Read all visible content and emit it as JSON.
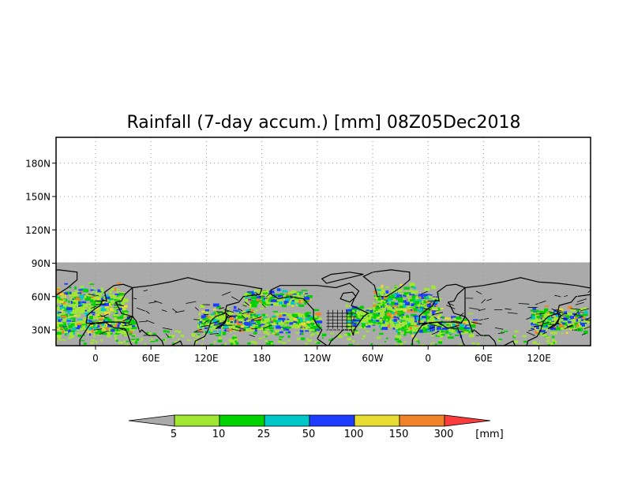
{
  "title": "Rainfall (7-day accum.) [mm] 08Z05Dec2018",
  "map": {
    "lat_labels": [
      "180N",
      "150N",
      "120N",
      "90N",
      "60N",
      "30N"
    ],
    "lon_labels": [
      "0",
      "60E",
      "120E",
      "180",
      "120W",
      "60W",
      "0",
      "60E",
      "120E"
    ]
  },
  "legend": {
    "thresholds": [
      "5",
      "10",
      "25",
      "50",
      "100",
      "150",
      "300"
    ],
    "unit": "[mm]",
    "colors": {
      "below": "#aaaaaa",
      "5_10": "#a0e632",
      "10_25": "#00d200",
      "25_50": "#00c8c8",
      "50_100": "#1e3cff",
      "100_150": "#e6dc32",
      "150_300": "#f08228",
      "above": "#fa3c3c"
    }
  },
  "colors": {
    "no_data_grey": "#aaaaaa",
    "frame": "#000000",
    "grid": "#9a9a9a"
  }
}
